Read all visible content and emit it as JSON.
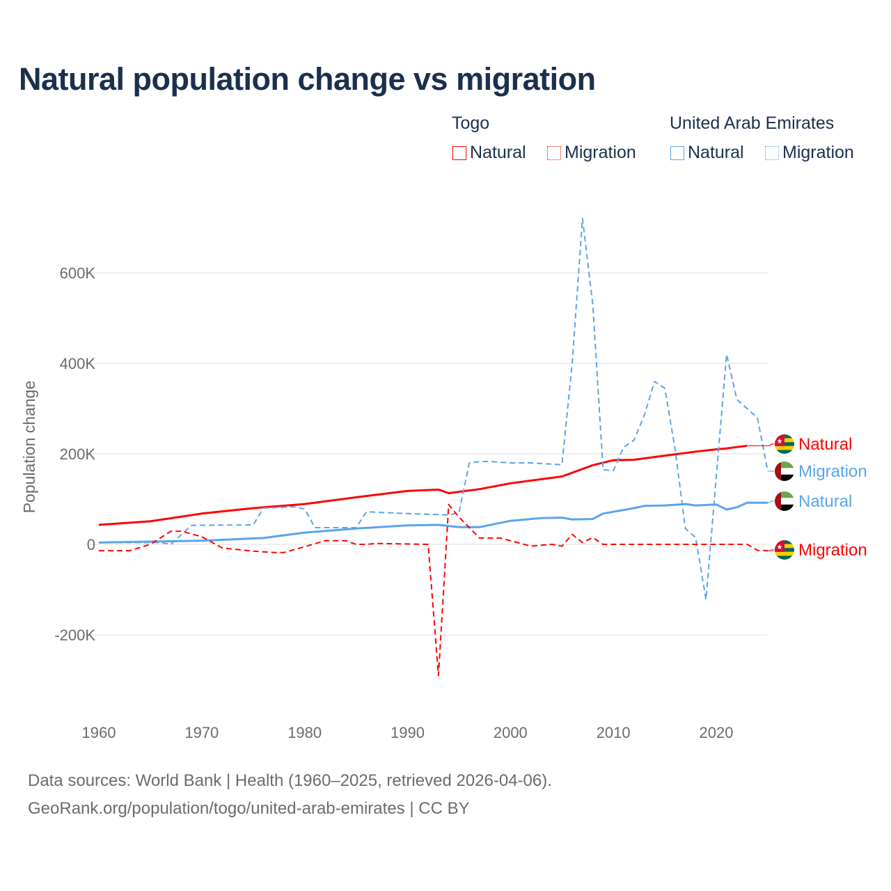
{
  "title": "Natural population change vs migration",
  "legend": {
    "groups": [
      {
        "name": "Togo",
        "color": "#ff0000",
        "items": [
          "Natural",
          "Migration"
        ]
      },
      {
        "name": "United Arab Emirates",
        "color": "#5ba4ea",
        "items": [
          "Natural",
          "Migration"
        ]
      }
    ]
  },
  "footer": {
    "line1": "Data sources: World Bank | Health (1960–2025, retrieved 2026-04-06).",
    "line2": "GeoRank.org/population/togo/united-arab-emirates | CC BY"
  },
  "chart_data": {
    "type": "line",
    "title": "Natural population change vs migration",
    "xlabel": "",
    "ylabel": "Population change",
    "xlim": [
      1960,
      2025
    ],
    "ylim": [
      -330000,
      750000
    ],
    "x_ticks": [
      1960,
      1970,
      1980,
      1990,
      2000,
      2010,
      2020
    ],
    "y_ticks": [
      -200000,
      0,
      200000,
      400000,
      600000
    ],
    "y_tick_labels": [
      "-200K",
      "0",
      "200K",
      "400K",
      "600K"
    ],
    "grid": true,
    "legend_position": "top-right",
    "series": [
      {
        "name": "Natural",
        "country": "Togo",
        "color": "#ff0000",
        "dash": false,
        "end_label": "Natural",
        "points": [
          [
            1960,
            43000
          ],
          [
            1965,
            51000
          ],
          [
            1970,
            68000
          ],
          [
            1975,
            80000
          ],
          [
            1980,
            89000
          ],
          [
            1985,
            104000
          ],
          [
            1990,
            118000
          ],
          [
            1993,
            121000
          ],
          [
            1994,
            113000
          ],
          [
            1997,
            122000
          ],
          [
            2000,
            135000
          ],
          [
            2005,
            150000
          ],
          [
            2008,
            175000
          ],
          [
            2010,
            186000
          ],
          [
            2012,
            187000
          ],
          [
            2015,
            196000
          ],
          [
            2018,
            205000
          ],
          [
            2020,
            210000
          ],
          [
            2021,
            212000
          ],
          [
            2023,
            218000
          ]
        ]
      },
      {
        "name": "Migration",
        "country": "United Arab Emirates",
        "color": "#5ba4ea",
        "dash": true,
        "end_label": "Migration",
        "points": [
          [
            1960,
            4000
          ],
          [
            1966,
            4000
          ],
          [
            1967,
            0
          ],
          [
            1969,
            42000
          ],
          [
            1975,
            43000
          ],
          [
            1976,
            80000
          ],
          [
            1979,
            83000
          ],
          [
            1980,
            78000
          ],
          [
            1981,
            37000
          ],
          [
            1985,
            37000
          ],
          [
            1986,
            72000
          ],
          [
            1990,
            68000
          ],
          [
            1994,
            65000
          ],
          [
            1995,
            70000
          ],
          [
            1996,
            180000
          ],
          [
            1997,
            183000
          ],
          [
            1998,
            183000
          ],
          [
            2000,
            180000
          ],
          [
            2002,
            180000
          ],
          [
            2005,
            176000
          ],
          [
            2006,
            400000
          ],
          [
            2007,
            720000
          ],
          [
            2008,
            530000
          ],
          [
            2009,
            165000
          ],
          [
            2010,
            163000
          ],
          [
            2011,
            215000
          ],
          [
            2012,
            230000
          ],
          [
            2013,
            285000
          ],
          [
            2014,
            360000
          ],
          [
            2015,
            345000
          ],
          [
            2016,
            210000
          ],
          [
            2017,
            35000
          ],
          [
            2018,
            15000
          ],
          [
            2019,
            -122000
          ],
          [
            2020,
            150000
          ],
          [
            2021,
            420000
          ],
          [
            2022,
            320000
          ],
          [
            2023,
            300000
          ],
          [
            2024,
            280000
          ],
          [
            2025,
            162000
          ]
        ]
      },
      {
        "name": "Natural",
        "country": "United Arab Emirates",
        "color": "#5ba4ea",
        "dash": false,
        "end_label": "Natural",
        "points": [
          [
            1960,
            4000
          ],
          [
            1970,
            8000
          ],
          [
            1976,
            14000
          ],
          [
            1980,
            26000
          ],
          [
            1985,
            35000
          ],
          [
            1990,
            42000
          ],
          [
            1993,
            43000
          ],
          [
            1995,
            38000
          ],
          [
            1997,
            38000
          ],
          [
            2000,
            52000
          ],
          [
            2003,
            58000
          ],
          [
            2005,
            59000
          ],
          [
            2006,
            55000
          ],
          [
            2008,
            56000
          ],
          [
            2009,
            68000
          ],
          [
            2012,
            80000
          ],
          [
            2013,
            85000
          ],
          [
            2015,
            86000
          ],
          [
            2017,
            89000
          ],
          [
            2018,
            86000
          ],
          [
            2020,
            88000
          ],
          [
            2021,
            77000
          ],
          [
            2022,
            82000
          ],
          [
            2023,
            92000
          ],
          [
            2025,
            92000
          ]
        ]
      },
      {
        "name": "Migration",
        "country": "Togo",
        "color": "#ff0000",
        "dash": true,
        "end_label": "Migration",
        "points": [
          [
            1960,
            -14000
          ],
          [
            1963,
            -14000
          ],
          [
            1965,
            0
          ],
          [
            1967,
            29000
          ],
          [
            1968,
            29000
          ],
          [
            1970,
            17000
          ],
          [
            1972,
            -8000
          ],
          [
            1975,
            -15000
          ],
          [
            1977,
            -18000
          ],
          [
            1978,
            -18000
          ],
          [
            1980,
            -5000
          ],
          [
            1982,
            8000
          ],
          [
            1984,
            8000
          ],
          [
            1985,
            0
          ],
          [
            1986,
            0
          ],
          [
            1987,
            2000
          ],
          [
            1992,
            0
          ],
          [
            1993,
            -290000
          ],
          [
            1994,
            88000
          ],
          [
            1995,
            60000
          ],
          [
            1997,
            14000
          ],
          [
            1999,
            14000
          ],
          [
            2000,
            8000
          ],
          [
            2002,
            -4000
          ],
          [
            2004,
            0
          ],
          [
            2005,
            -4000
          ],
          [
            2006,
            22000
          ],
          [
            2007,
            4000
          ],
          [
            2008,
            15000
          ],
          [
            2009,
            0
          ],
          [
            2023,
            0
          ],
          [
            2024,
            -13000
          ],
          [
            2025,
            -14000
          ]
        ]
      }
    ]
  }
}
